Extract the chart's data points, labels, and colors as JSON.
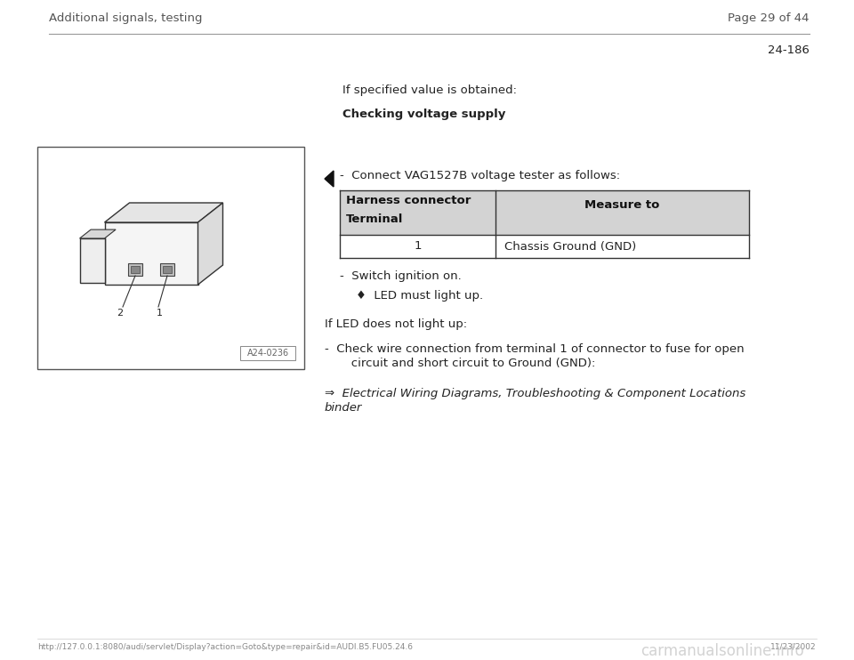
{
  "bg_color": "#ffffff",
  "header_left": "Additional signals, testing",
  "header_right": "Page 29 of 44",
  "page_number": "24-186",
  "section_label": "If specified value is obtained:",
  "section_heading": "Checking voltage supply",
  "connect_text": "-  Connect VAG1527B voltage tester as follows:",
  "table_header_col1a": "Harness connector",
  "table_header_col1b": "Terminal",
  "table_header_col2": "Measure to",
  "table_row_col1": "1",
  "table_row_col2": "Chassis Ground (GND)",
  "table_header_bg": "#d3d3d3",
  "bullet_line1": "-  Switch ignition on.",
  "bullet_line2": "♦  LED must light up.",
  "if_led_text": "If LED does not light up:",
  "check_wire_line1": "-  Check wire connection from terminal 1 of connector to fuse for open",
  "check_wire_line2": "   circuit and short circuit to Ground (GND):",
  "arrow_line1": "⇒  Electrical Wiring Diagrams, Troubleshooting & Component Locations",
  "arrow_line2": "binder",
  "image_label": "A24-0236",
  "footer_url": "http://127.0.0.1:8080/audi/servlet/Display?action=Goto&type=repair&id=AUDI.B5.FU05.24.6",
  "footer_date": "11/23/2002",
  "watermark": "carmanualsonline.info",
  "header_color": "#555555",
  "text_color": "#222222",
  "header_fontsize": 9.5,
  "body_fontsize": 9.5
}
